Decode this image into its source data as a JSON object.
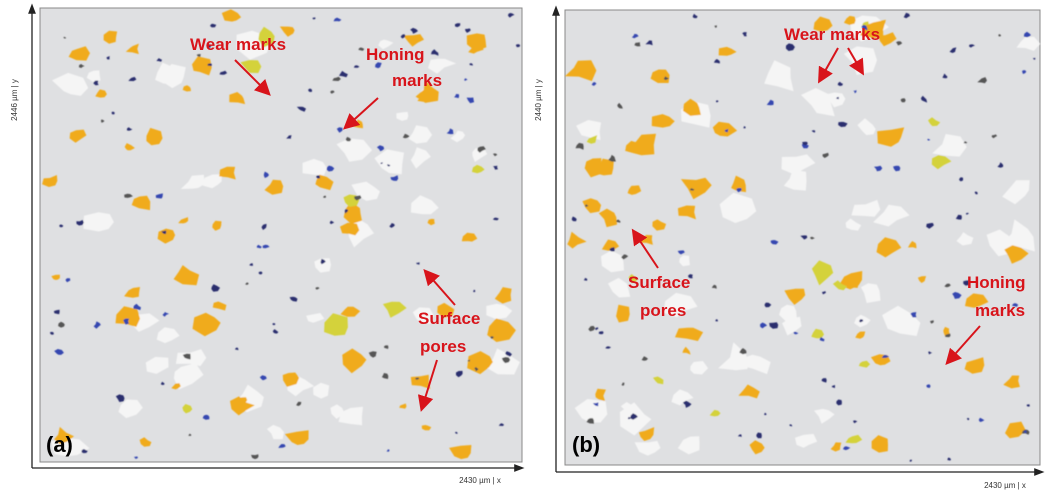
{
  "panels": [
    {
      "label": "(a)",
      "y_axis_label": "2446 µm | y",
      "x_axis_label": "2430 µm | x",
      "annotations": [
        {
          "lines": [
            "Wear marks"
          ]
        },
        {
          "lines": [
            "Honing",
            "marks"
          ]
        },
        {
          "lines": [
            "Surface",
            "pores"
          ]
        }
      ]
    },
    {
      "label": "(b)",
      "y_axis_label": "2440 µm | y",
      "x_axis_label": "2430 µm | x",
      "annotations": [
        {
          "lines": [
            "Wear marks"
          ]
        },
        {
          "lines": [
            "Surface",
            "pores"
          ]
        },
        {
          "lines": [
            "Honing",
            "marks"
          ]
        }
      ]
    }
  ]
}
